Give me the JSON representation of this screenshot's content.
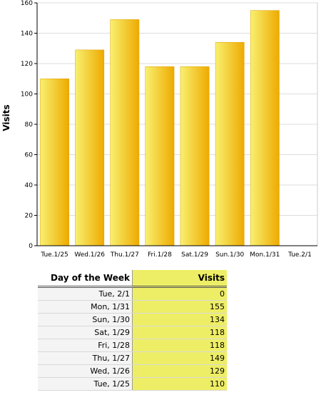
{
  "chart_data": {
    "type": "bar",
    "categories": [
      "Tue.1/25",
      "Wed.1/26",
      "Thu.1/27",
      "Fri.1/28",
      "Sat.1/29",
      "Sun.1/30",
      "Mon.1/31",
      "Tue.2/1"
    ],
    "values": [
      110,
      129,
      149,
      118,
      118,
      134,
      155,
      0
    ],
    "xlabel": "",
    "ylabel": "Visits",
    "ylim": [
      0,
      160
    ],
    "yticks": [
      0,
      20,
      40,
      60,
      80,
      100,
      120,
      140,
      160
    ],
    "grid": true,
    "colors": {
      "bar_light": "#f8f070",
      "bar_dark": "#eeaa00",
      "bar_edge": "#e0a000"
    }
  },
  "table": {
    "headers": {
      "day": "Day of the Week",
      "visits": "Visits"
    },
    "rows": [
      {
        "day": "Tue, 2/1",
        "visits": "0"
      },
      {
        "day": "Mon, 1/31",
        "visits": "155"
      },
      {
        "day": "Sun, 1/30",
        "visits": "134"
      },
      {
        "day": "Sat, 1/29",
        "visits": "118"
      },
      {
        "day": "Fri, 1/28",
        "visits": "118"
      },
      {
        "day": "Thu, 1/27",
        "visits": "149"
      },
      {
        "day": "Wed, 1/26",
        "visits": "129"
      },
      {
        "day": "Tue, 1/25",
        "visits": "110"
      }
    ]
  }
}
